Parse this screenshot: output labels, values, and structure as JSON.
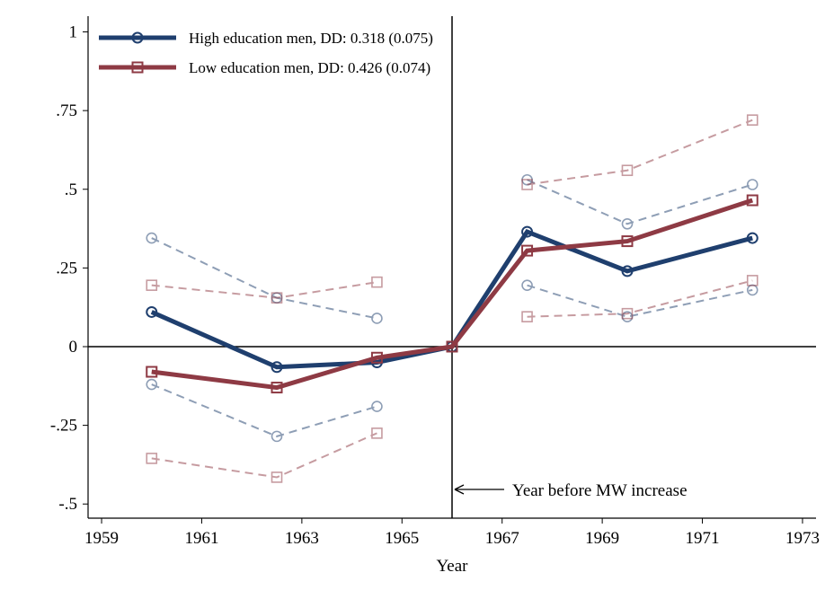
{
  "chart_data": {
    "type": "line",
    "xlabel": "Year",
    "x": [
      1960,
      1962.5,
      1964.5,
      1966,
      1967.5,
      1969.5,
      1972
    ],
    "series": [
      {
        "name": "High education men, DD: 0.318 (0.075)",
        "color": "#1f3f6e",
        "marker": "circle",
        "values": [
          0.11,
          -0.065,
          -0.05,
          0,
          0.365,
          0.24,
          0.345
        ],
        "ci_upper": [
          0.345,
          0.155,
          0.09,
          null,
          0.53,
          0.39,
          0.515
        ],
        "ci_lower": [
          -0.12,
          -0.285,
          -0.19,
          null,
          0.195,
          0.095,
          0.18
        ]
      },
      {
        "name": "Low education men, DD: 0.426 (0.074)",
        "color": "#8e3a44",
        "marker": "square",
        "values": [
          -0.08,
          -0.13,
          -0.035,
          0,
          0.305,
          0.335,
          0.465
        ],
        "ci_upper": [
          0.195,
          0.155,
          0.205,
          null,
          0.515,
          0.56,
          0.72
        ],
        "ci_lower": [
          -0.355,
          -0.415,
          -0.275,
          null,
          0.095,
          0.105,
          0.21
        ]
      }
    ],
    "xlim": [
      1958.73,
      1973.27
    ],
    "ylim": [
      -0.545,
      1.05
    ],
    "xticks": [
      1959,
      1961,
      1963,
      1965,
      1967,
      1969,
      1971,
      1973
    ],
    "yticks": [
      {
        "value": -0.5,
        "label": "-.5"
      },
      {
        "value": -0.25,
        "label": "-.25"
      },
      0,
      {
        "value": 0.25,
        "label": ".25"
      },
      {
        "value": 0.5,
        "label": ".5"
      },
      {
        "value": 0.75,
        "label": ".75"
      },
      1
    ],
    "hline_y": 0,
    "vline_x": 1966,
    "annotation": "Year before MW increase",
    "legend": "upper left"
  }
}
